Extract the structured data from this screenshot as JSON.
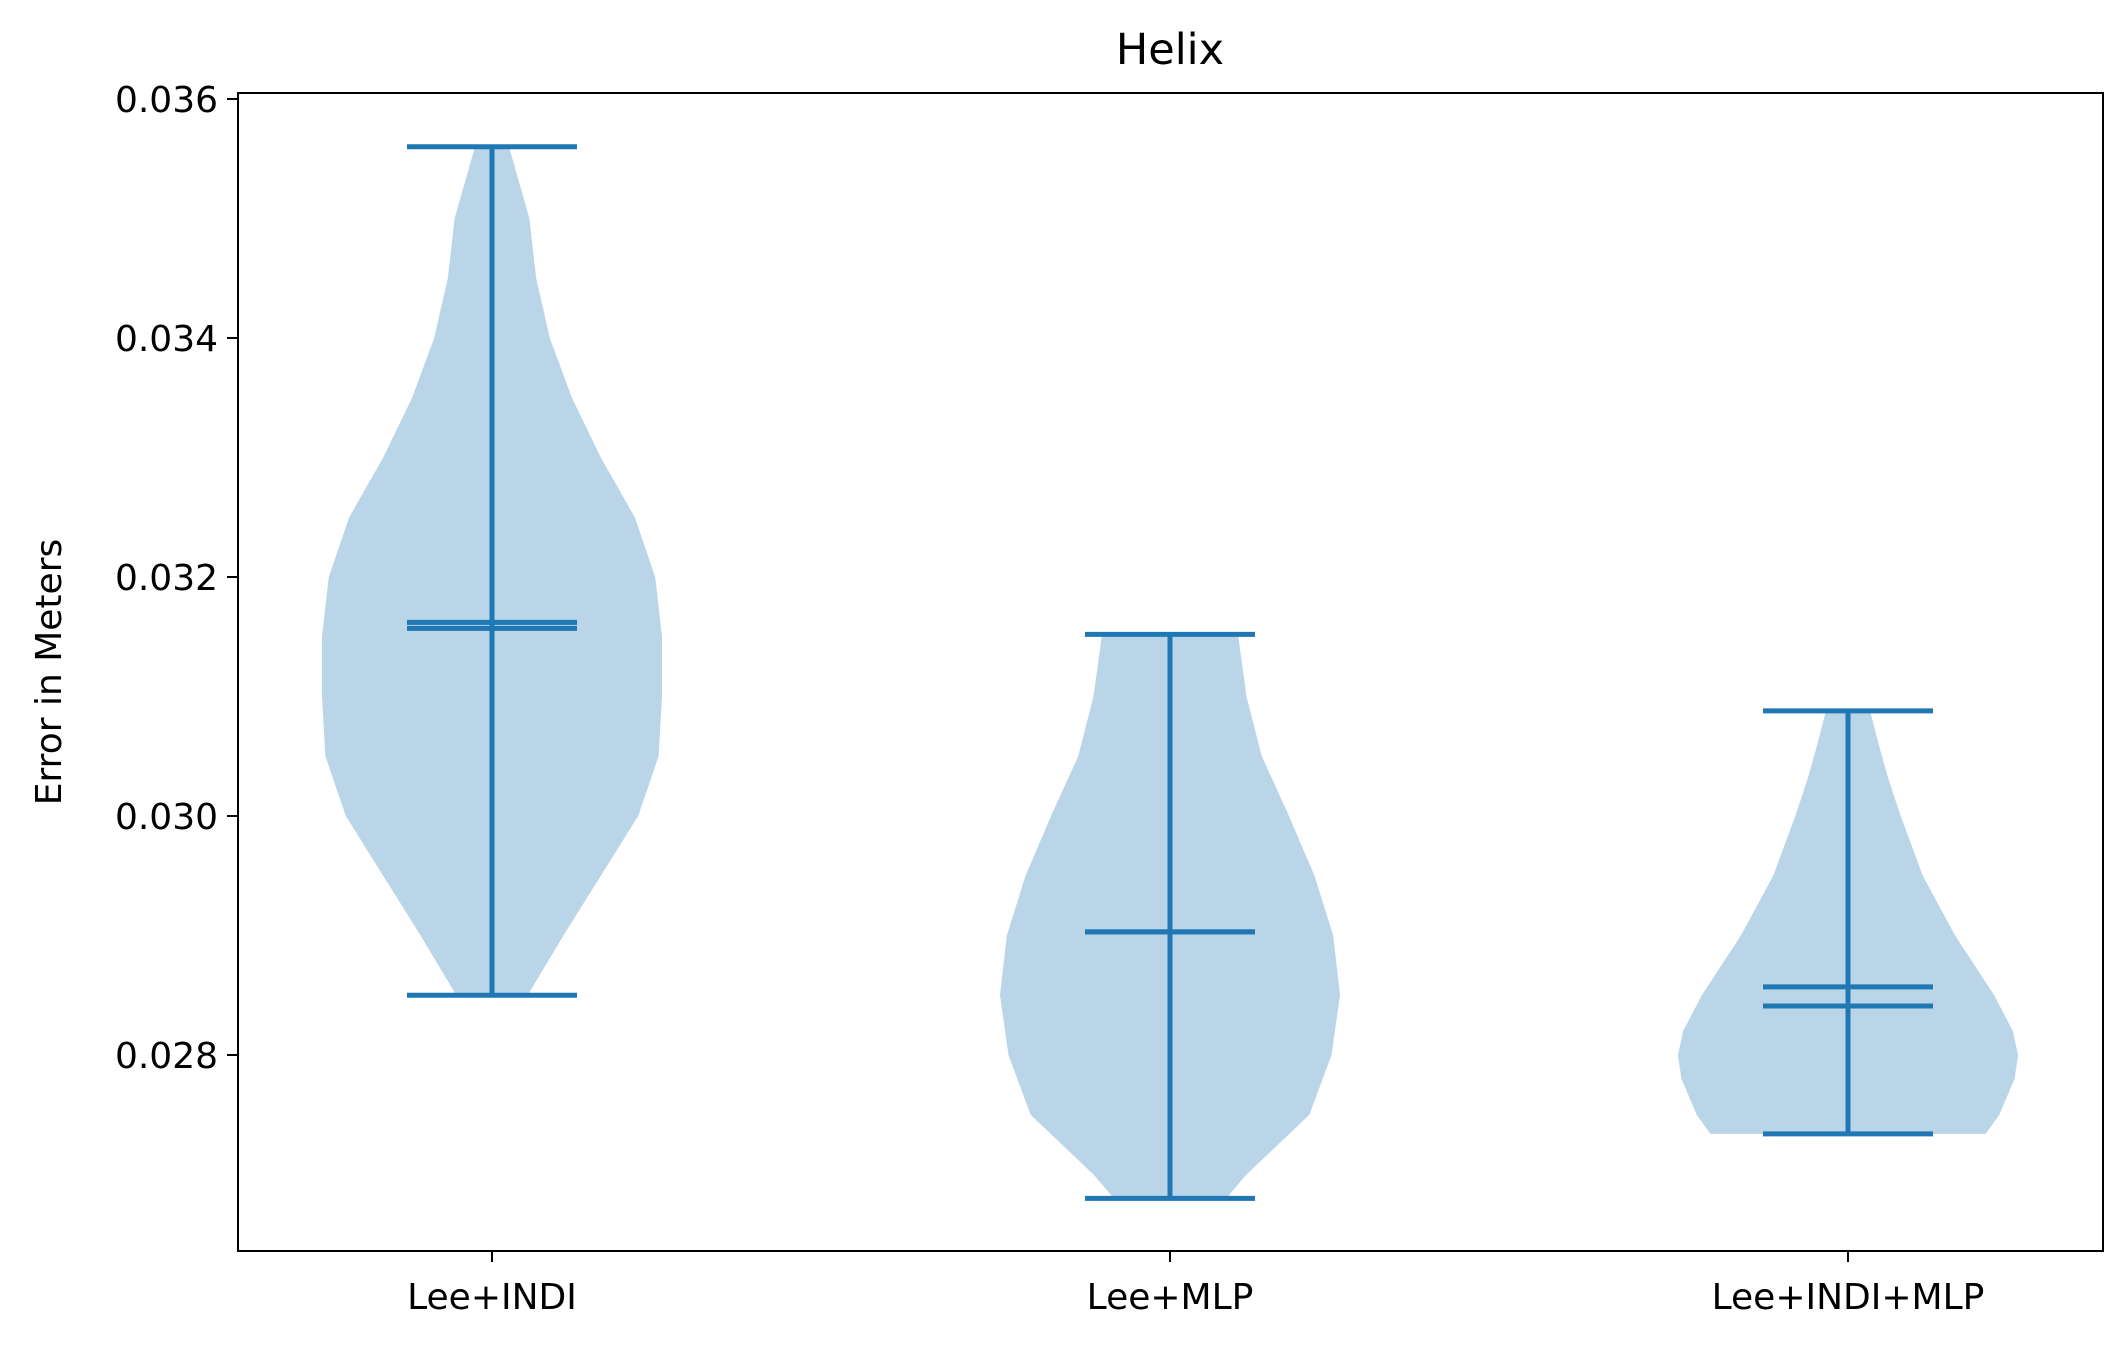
{
  "chart_data": {
    "type": "violin",
    "title": "Helix",
    "xlabel": "",
    "ylabel": "Error in Meters",
    "ylim": [
      0.02636,
      0.03605
    ],
    "yticks": [
      "0.028",
      "0.030",
      "0.032",
      "0.034",
      "0.036"
    ],
    "categories": [
      "Lee+INDI",
      "Lee+MLP",
      "Lee+INDI+MLP"
    ],
    "series": [
      {
        "min": 0.0285,
        "max": 0.0356,
        "mean": 0.03162,
        "median": 0.03157,
        "profile": [
          [
            0.0285,
            0.21
          ],
          [
            0.029,
            0.42
          ],
          [
            0.0295,
            0.64
          ],
          [
            0.03,
            0.86
          ],
          [
            0.0305,
            0.98
          ],
          [
            0.031,
            1.0
          ],
          [
            0.0315,
            1.0
          ],
          [
            0.032,
            0.96
          ],
          [
            0.0325,
            0.84
          ],
          [
            0.033,
            0.64
          ],
          [
            0.0335,
            0.47
          ],
          [
            0.034,
            0.34
          ],
          [
            0.0345,
            0.26
          ],
          [
            0.035,
            0.22
          ],
          [
            0.0356,
            0.1
          ]
        ]
      },
      {
        "min": 0.0268,
        "max": 0.03152,
        "mean": 0.02903,
        "median": 0.02903,
        "profile": [
          [
            0.0268,
            0.33
          ],
          [
            0.027,
            0.45
          ],
          [
            0.0275,
            0.82
          ],
          [
            0.028,
            0.95
          ],
          [
            0.0285,
            1.0
          ],
          [
            0.029,
            0.96
          ],
          [
            0.0295,
            0.85
          ],
          [
            0.03,
            0.7
          ],
          [
            0.0305,
            0.54
          ],
          [
            0.031,
            0.45
          ],
          [
            0.03152,
            0.4
          ]
        ]
      },
      {
        "min": 0.02734,
        "max": 0.03088,
        "mean": 0.02857,
        "median": 0.02841,
        "profile": [
          [
            0.02734,
            0.81
          ],
          [
            0.0275,
            0.89
          ],
          [
            0.0278,
            0.98
          ],
          [
            0.028,
            1.0
          ],
          [
            0.0282,
            0.97
          ],
          [
            0.0285,
            0.86
          ],
          [
            0.029,
            0.63
          ],
          [
            0.0295,
            0.44
          ],
          [
            0.03,
            0.31
          ],
          [
            0.0303,
            0.24
          ],
          [
            0.0306,
            0.18
          ],
          [
            0.03088,
            0.13
          ]
        ]
      }
    ],
    "colors": {
      "body": "#bad5e8",
      "line": "#1f77b4"
    },
    "grid": false
  }
}
